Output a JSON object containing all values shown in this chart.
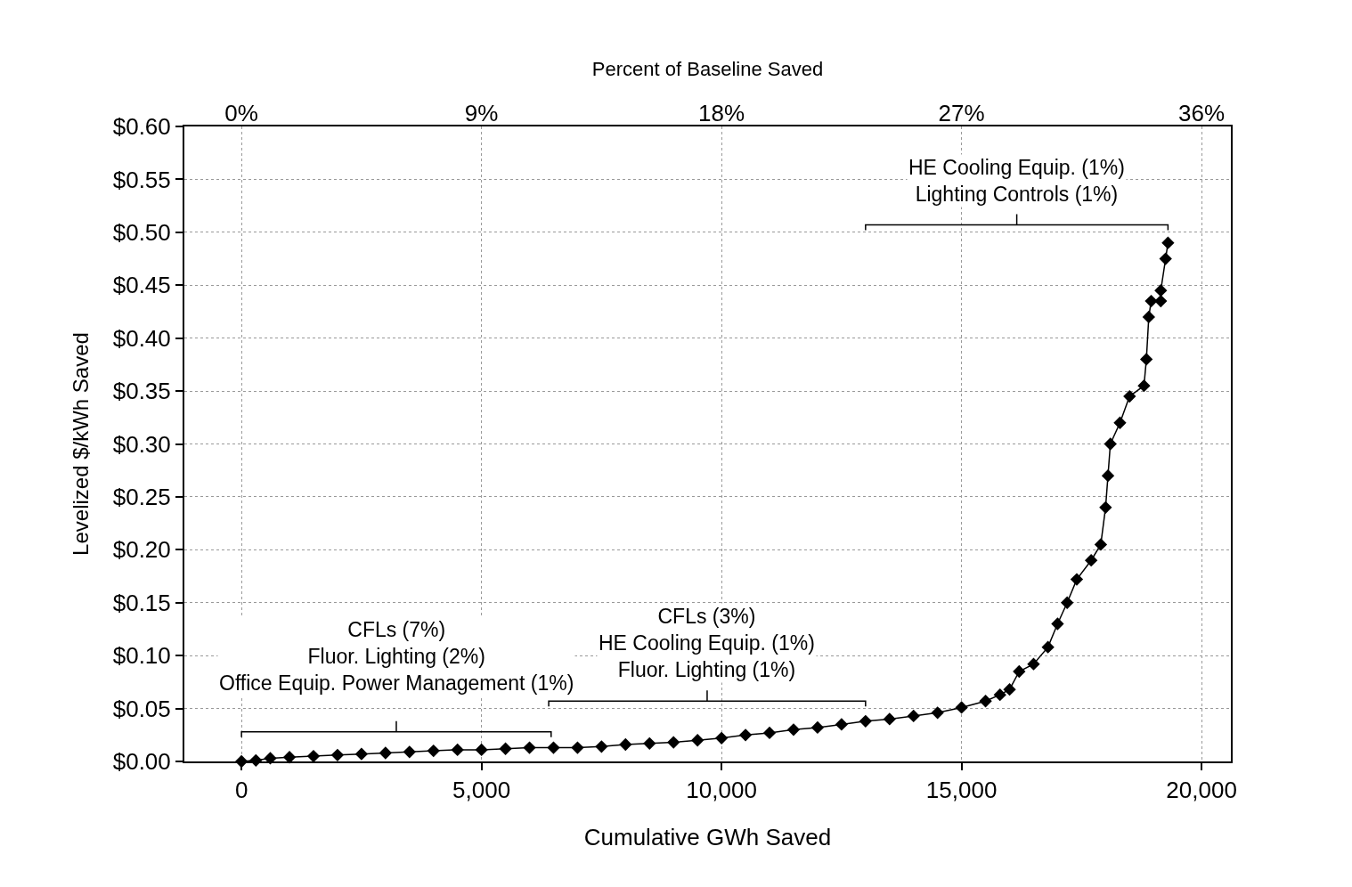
{
  "chart_data": {
    "type": "line",
    "xlabel": "Cumulative GWh Saved",
    "ylabel": "Levelized $/kWh Saved",
    "x2label": "Percent of Baseline Saved",
    "marker": "diamond",
    "line_style": "solid",
    "grid": true,
    "xlim": [
      -1190,
      20610
    ],
    "xticks": [
      0,
      {
        "value": 5000,
        "label": "5,000"
      },
      {
        "value": 10000,
        "label": "10,000"
      },
      {
        "value": 15000,
        "label": "15,000"
      },
      {
        "value": 20000,
        "label": "20,000"
      }
    ],
    "x2lim": [
      -2.14,
      37.1
    ],
    "x2ticks": [
      {
        "value": 0,
        "label": "0%"
      },
      {
        "value": 9,
        "label": "9%"
      },
      {
        "value": 18,
        "label": "18%"
      },
      {
        "value": 27,
        "label": "27%"
      },
      {
        "value": 36,
        "label": "36%"
      }
    ],
    "ylim": [
      0,
      0.6
    ],
    "yticks": [
      {
        "value": 0,
        "label": "$0.00"
      },
      {
        "value": 0.05,
        "label": "$0.05"
      },
      {
        "value": 0.1,
        "label": "$0.10"
      },
      {
        "value": 0.15,
        "label": "$0.15"
      },
      {
        "value": 0.2,
        "label": "$0.20"
      },
      {
        "value": 0.25,
        "label": "$0.25"
      },
      {
        "value": 0.3,
        "label": "$0.30"
      },
      {
        "value": 0.35,
        "label": "$0.35"
      },
      {
        "value": 0.4,
        "label": "$0.40"
      },
      {
        "value": 0.45,
        "label": "$0.45"
      },
      {
        "value": 0.5,
        "label": "$0.50"
      },
      {
        "value": 0.55,
        "label": "$0.55"
      },
      {
        "value": 0.6,
        "label": "$0.60"
      }
    ],
    "series": [
      {
        "color": "#000000",
        "x": [
          0,
          300,
          600,
          1000,
          1500,
          2000,
          2500,
          3000,
          3500,
          4000,
          4500,
          5000,
          5500,
          6000,
          6500,
          7000,
          7500,
          8000,
          8500,
          9000,
          9500,
          10000,
          10500,
          11000,
          11500,
          12000,
          12500,
          13000,
          13500,
          14000,
          14500,
          15000,
          15500,
          15800,
          16000,
          16200,
          16500,
          16800,
          17000,
          17200,
          17400,
          17700,
          17900,
          18000,
          18050,
          18100,
          18300,
          18500,
          18800,
          18850,
          18900,
          18950,
          19150,
          19150,
          19250,
          19300
        ],
        "values": [
          0,
          0.001,
          0.003,
          0.004,
          0.005,
          0.006,
          0.007,
          0.008,
          0.009,
          0.01,
          0.011,
          0.011,
          0.012,
          0.013,
          0.013,
          0.013,
          0.014,
          0.016,
          0.017,
          0.018,
          0.02,
          0.022,
          0.025,
          0.027,
          0.03,
          0.032,
          0.035,
          0.038,
          0.04,
          0.043,
          0.046,
          0.051,
          0.057,
          0.063,
          0.068,
          0.085,
          0.092,
          0.108,
          0.13,
          0.15,
          0.172,
          0.19,
          0.205,
          0.24,
          0.27,
          0.3,
          0.32,
          0.345,
          0.355,
          0.38,
          0.42,
          0.435,
          0.435,
          0.445,
          0.475,
          0.49
        ]
      }
    ],
    "annotations": [
      "CFLs (7%)\nFluor. Lighting (2%)\nOffice Equip. Power Management (1%)",
      "CFLs (3%)\nHE Cooling Equip. (1%)\nFluor. Lighting (1%)",
      "HE Cooling Equip. (1%)\nLighting Controls (1%)"
    ]
  }
}
